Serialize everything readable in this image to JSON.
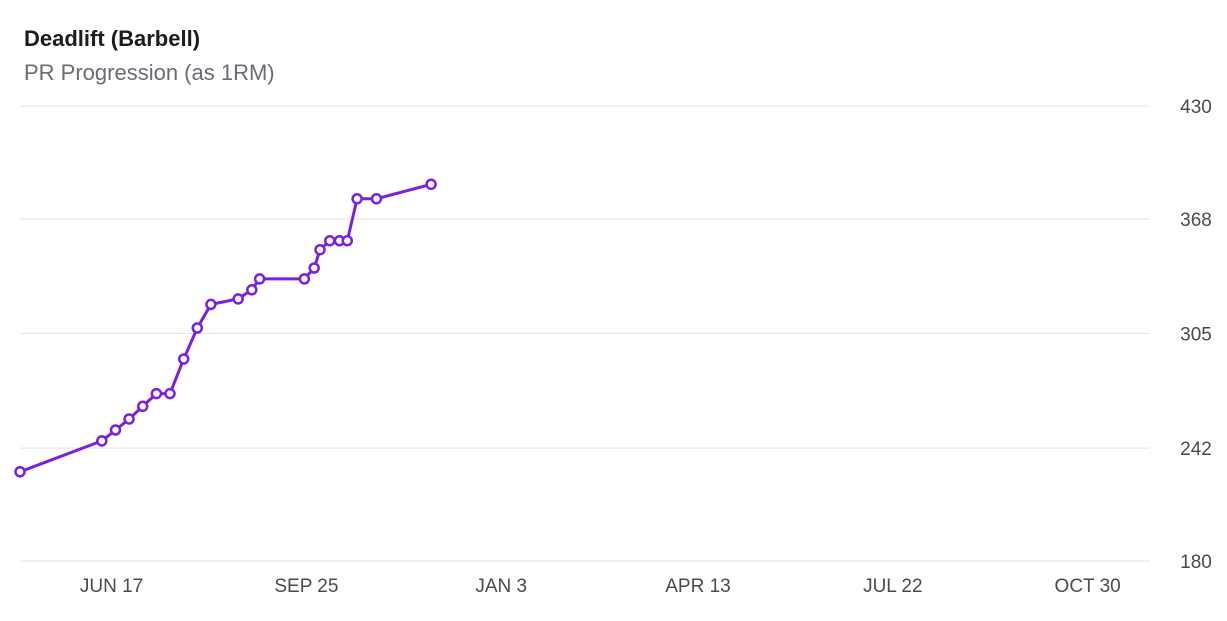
{
  "chart_data": {
    "type": "line",
    "title": "Deadlift (Barbell)",
    "subtitle": "PR Progression (as 1RM)",
    "xlabel": "",
    "ylabel": "",
    "ylim": [
      180,
      430
    ],
    "xlim": [
      "2023-05-01",
      "2024-12-01"
    ],
    "yticks": [
      430,
      368,
      305,
      242,
      180
    ],
    "xticks": [
      {
        "date": "2023-06-17",
        "label": "JUN 17"
      },
      {
        "date": "2023-09-25",
        "label": "SEP 25"
      },
      {
        "date": "2024-01-03",
        "label": "JAN 3"
      },
      {
        "date": "2024-04-13",
        "label": "APR 13"
      },
      {
        "date": "2024-07-22",
        "label": "JUL 22"
      },
      {
        "date": "2024-10-30",
        "label": "OCT 30"
      }
    ],
    "grid": true,
    "y_axis_position": "right",
    "line_color": "#7b1fe0",
    "series": [
      {
        "points": [
          {
            "x": "2023-05-01",
            "y": 229
          },
          {
            "x": "2023-06-12",
            "y": 246
          },
          {
            "x": "2023-06-19",
            "y": 252
          },
          {
            "x": "2023-06-26",
            "y": 258
          },
          {
            "x": "2023-07-03",
            "y": 265
          },
          {
            "x": "2023-07-10",
            "y": 272
          },
          {
            "x": "2023-07-17",
            "y": 272
          },
          {
            "x": "2023-07-24",
            "y": 291
          },
          {
            "x": "2023-07-31",
            "y": 308
          },
          {
            "x": "2023-08-07",
            "y": 321
          },
          {
            "x": "2023-08-21",
            "y": 324
          },
          {
            "x": "2023-08-28",
            "y": 329
          },
          {
            "x": "2023-09-01",
            "y": 335
          },
          {
            "x": "2023-09-24",
            "y": 335
          },
          {
            "x": "2023-09-29",
            "y": 341
          },
          {
            "x": "2023-10-02",
            "y": 351
          },
          {
            "x": "2023-10-07",
            "y": 356
          },
          {
            "x": "2023-10-12",
            "y": 356
          },
          {
            "x": "2023-10-16",
            "y": 356
          },
          {
            "x": "2023-10-21",
            "y": 379
          },
          {
            "x": "2023-10-31",
            "y": 379
          },
          {
            "x": "2023-11-28",
            "y": 387
          }
        ]
      }
    ]
  }
}
